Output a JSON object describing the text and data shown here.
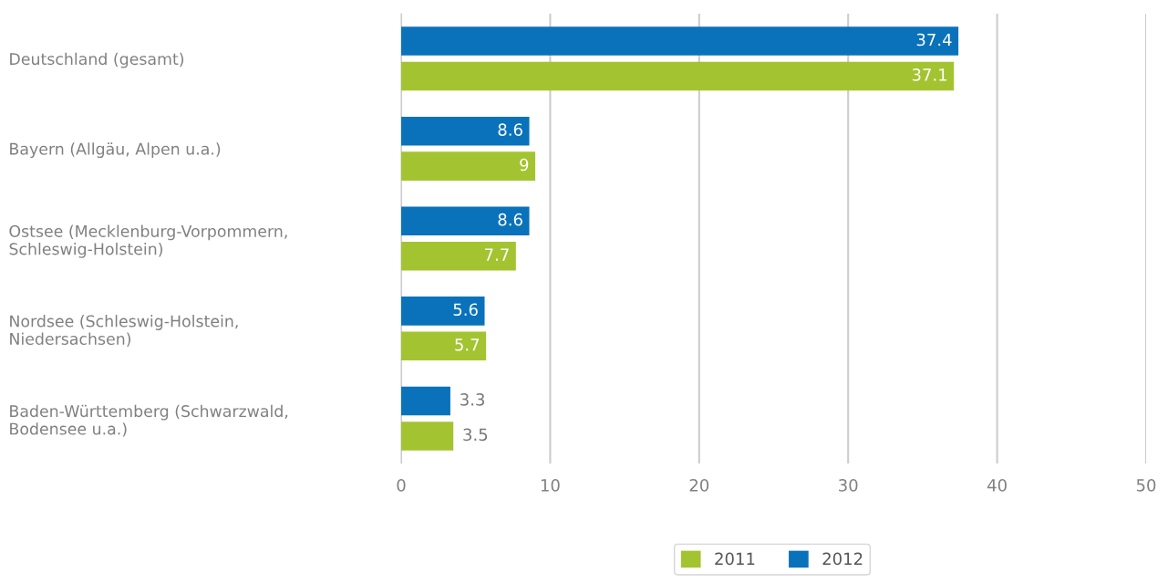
{
  "chart_data": {
    "type": "bar",
    "orientation": "horizontal",
    "categories": [
      "Deutschland (gesamt)",
      "Bayern (Allgäu, Alpen u.a.)",
      "Ostsee (Mecklenburg-Vorpommern,\nSchleswig-Holstein)",
      "Nordsee (Schleswig-Holstein,\nNiedersachsen)",
      "Baden-Württemberg (Schwarzwald,\nBodensee u.a.)"
    ],
    "series": [
      {
        "name": "2011",
        "color": "#a3c430",
        "values": [
          37.1,
          9,
          7.7,
          5.7,
          3.5
        ]
      },
      {
        "name": "2012",
        "color": "#0a72ba",
        "values": [
          37.4,
          8.6,
          8.6,
          5.6,
          3.3
        ]
      }
    ],
    "xlim": [
      0,
      50
    ],
    "xticks": [
      0,
      10,
      20,
      30,
      40,
      50
    ],
    "grid": "x",
    "legend": "bottom",
    "data_labels": true
  }
}
